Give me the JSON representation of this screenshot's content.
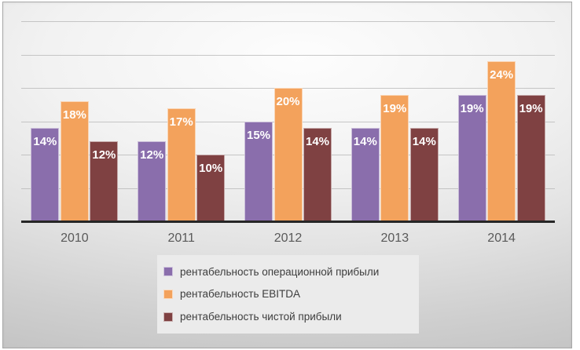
{
  "chart_data": {
    "type": "bar",
    "title": "",
    "categories": [
      "2010",
      "2011",
      "2012",
      "2013",
      "2014"
    ],
    "series": [
      {
        "name": "рентабельность операционной прибыли",
        "color": "#8A6EAC",
        "values": [
          14,
          12,
          15,
          14,
          19
        ]
      },
      {
        "name": "рентабельность EBITDA",
        "color": "#F3A25C",
        "values": [
          18,
          17,
          20,
          19,
          24
        ]
      },
      {
        "name": "рентабельность чистой прибыли",
        "color": "#7F4142",
        "values": [
          12,
          10,
          14,
          14,
          19
        ]
      }
    ],
    "data_labels": [
      "14%",
      "12%",
      "15%",
      "14%",
      "19%",
      "18%",
      "17%",
      "20%",
      "19%",
      "24%",
      "12%",
      "10%",
      "14%",
      "14%",
      "19%"
    ],
    "value_suffix": "%",
    "ylim": [
      0,
      30
    ],
    "gridline_step": 5,
    "grid": true,
    "y_axis_labels_visible": false,
    "legend_position": "bottom-center"
  },
  "colors": {
    "background_edge": "#c2c2c2",
    "background_center": "#fdfdfd",
    "gridline": "#b5b5b5",
    "axis_line": "#262626",
    "x_tick_label": "#595959",
    "data_label_text": "#ffffff",
    "legend_background": "#ebebeb",
    "legend_text": "#3d3d3d",
    "frame_border": "#a8a8a8"
  }
}
